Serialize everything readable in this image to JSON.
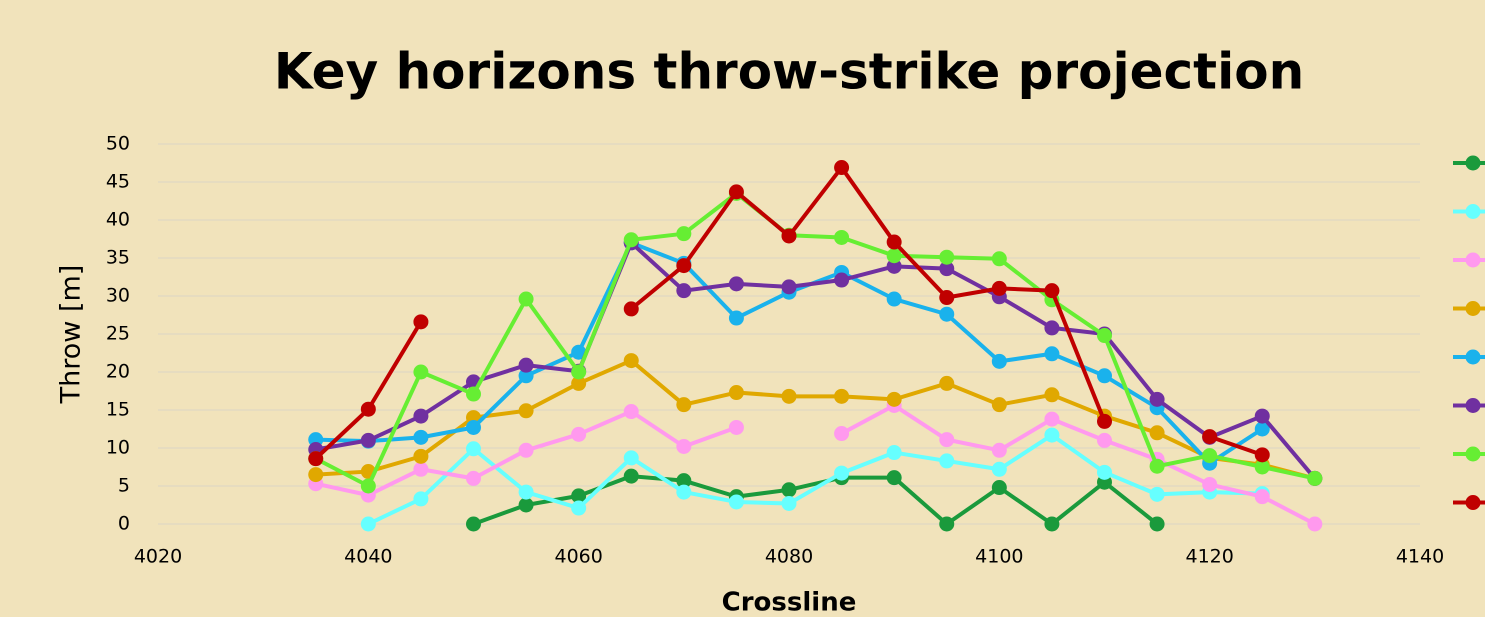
{
  "chart_data": {
    "type": "line",
    "title": "Key horizons throw-strike projection",
    "x_label": "Crossline",
    "y_label": "Throw [m]",
    "x": [
      4035,
      4040,
      4045,
      4050,
      4055,
      4060,
      4065,
      4070,
      4075,
      4080,
      4085,
      4090,
      4095,
      4100,
      4105,
      4110,
      4115,
      4120,
      4125,
      4130
    ],
    "xlim": [
      4020,
      4140
    ],
    "xticks": [
      4020,
      4040,
      4060,
      4080,
      4100,
      4120,
      4140
    ],
    "ylim": [
      0,
      50
    ],
    "yticks": [
      0,
      5,
      10,
      15,
      20,
      25,
      30,
      35,
      40,
      45,
      50
    ],
    "grid": true,
    "legend": "right",
    "series": [
      {
        "color": "#1a9a3c",
        "values": [
          null,
          null,
          null,
          0,
          2.5,
          3.7,
          6.3,
          5.7,
          3.6,
          4.5,
          6.1,
          6.1,
          0,
          4.8,
          0,
          5.5,
          0,
          null,
          null,
          null
        ]
      },
      {
        "color": "#66ffff",
        "values": [
          null,
          0,
          3.3,
          9.9,
          4.2,
          2.1,
          8.7,
          4.2,
          2.9,
          2.7,
          6.7,
          9.4,
          8.3,
          7.2,
          11.7,
          6.8,
          3.9,
          4.2,
          4.0,
          null
        ]
      },
      {
        "color": "#ff99ee",
        "values": [
          5.3,
          3.8,
          7.2,
          6.0,
          9.7,
          11.8,
          14.8,
          10.2,
          12.7,
          null,
          11.9,
          15.6,
          11.1,
          9.7,
          13.8,
          11.0,
          8.5,
          5.2,
          3.6,
          0
        ]
      },
      {
        "color": "#e0a800",
        "values": [
          6.5,
          6.9,
          8.9,
          14.0,
          14.9,
          18.5,
          21.5,
          15.7,
          17.3,
          16.8,
          16.8,
          16.4,
          18.5,
          15.7,
          17.0,
          14.2,
          12.0,
          8.7,
          7.8,
          6.0
        ]
      },
      {
        "color": "#1ab2ec",
        "values": [
          11.1,
          10.9,
          11.4,
          12.7,
          19.5,
          22.6,
          37.0,
          34.3,
          27.1,
          30.5,
          33.1,
          29.6,
          27.6,
          21.4,
          22.4,
          19.5,
          15.3,
          8.0,
          12.5,
          null
        ]
      },
      {
        "color": "#7030a0",
        "values": [
          9.8,
          11.0,
          14.2,
          18.7,
          20.9,
          20.1,
          37.0,
          30.7,
          31.6,
          31.2,
          32.1,
          33.9,
          33.6,
          29.9,
          25.8,
          25.0,
          16.4,
          11.4,
          14.2,
          6.0
        ]
      },
      {
        "color": "#66ee33",
        "values": [
          8.6,
          5.0,
          20.0,
          17.1,
          29.6,
          20.0,
          37.4,
          38.2,
          43.5,
          38.0,
          37.7,
          35.3,
          35.1,
          34.9,
          29.5,
          24.8,
          7.6,
          9.0,
          7.5,
          6.0
        ]
      },
      {
        "color": "#c00000",
        "values": [
          8.6,
          15.1,
          26.6,
          null,
          null,
          null,
          28.3,
          34.0,
          43.7,
          37.9,
          46.9,
          37.1,
          29.8,
          31.0,
          30.7,
          13.5,
          null,
          11.5,
          9.1,
          null
        ]
      }
    ]
  }
}
